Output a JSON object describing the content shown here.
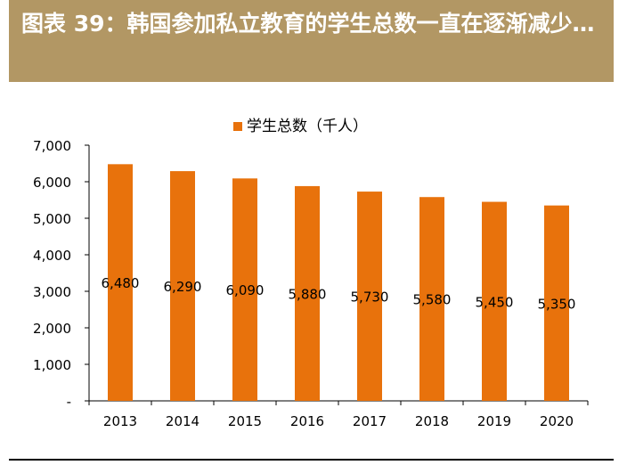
{
  "header": {
    "title": "图表 39：韩国参加私立教育的学生总数一直在逐渐减少…"
  },
  "colors": {
    "header_bg": "#b29764",
    "bar": "#e8720c"
  },
  "chart_data": {
    "type": "bar",
    "title": "",
    "xlabel": "",
    "ylabel": "",
    "categories": [
      "2013",
      "2014",
      "2015",
      "2016",
      "2017",
      "2018",
      "2019",
      "2020"
    ],
    "series": [
      {
        "name": "学生总数（千人）",
        "values": [
          6480,
          6290,
          6090,
          5880,
          5730,
          5580,
          5450,
          5350
        ]
      }
    ],
    "data_labels": [
      "6,480",
      "6,290",
      "6,090",
      "5,880",
      "5,730",
      "5,580",
      "5,450",
      "5,350"
    ],
    "ylim": [
      0,
      7000
    ],
    "yticks": [
      0,
      1000,
      2000,
      3000,
      4000,
      5000,
      6000,
      7000
    ],
    "ytick_labels": [
      "-",
      "1,000",
      "2,000",
      "3,000",
      "4,000",
      "5,000",
      "6,000",
      "7,000"
    ],
    "grid": false,
    "legend_position": "top-center"
  }
}
